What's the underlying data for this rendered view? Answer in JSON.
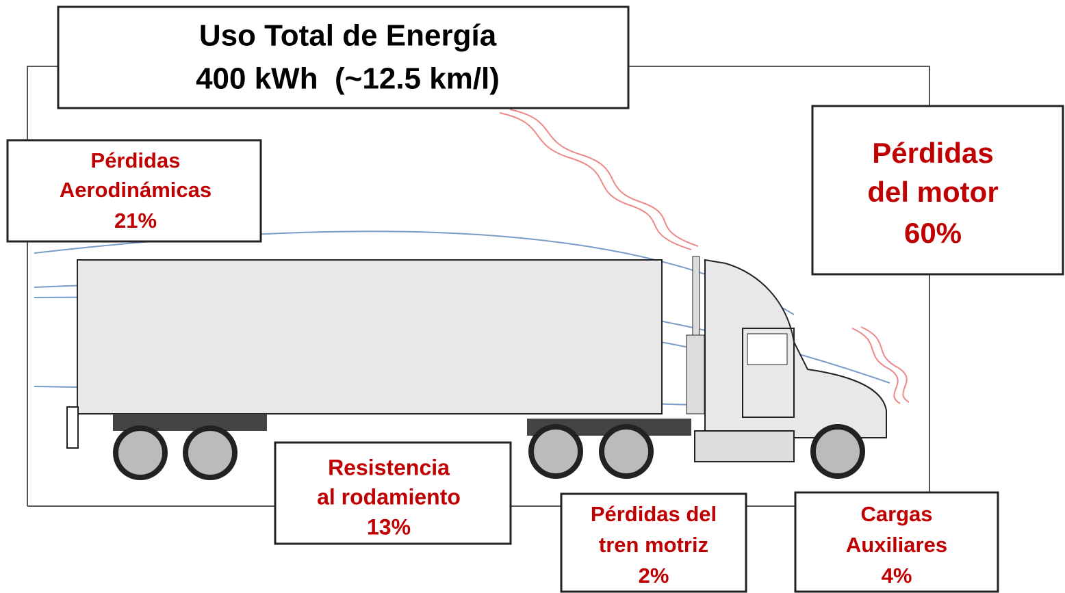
{
  "title": {
    "lines": [
      "Uso Total de Energía",
      "400 kWh  (~12.5 km/l)"
    ]
  },
  "boxes": [
    {
      "lines": [
        "Pérdidas",
        "Aerodinámicas",
        "21%"
      ]
    },
    {
      "lines": [
        "Pérdidas",
        "del motor",
        "60%"
      ]
    },
    {
      "lines": [
        "Resistencia",
        "al rodamiento",
        "13%"
      ]
    },
    {
      "lines": [
        "Pérdidas del",
        "tren motriz",
        "2%"
      ]
    },
    {
      "lines": [
        "Cargas",
        "Auxiliares",
        "4%"
      ]
    }
  ]
}
